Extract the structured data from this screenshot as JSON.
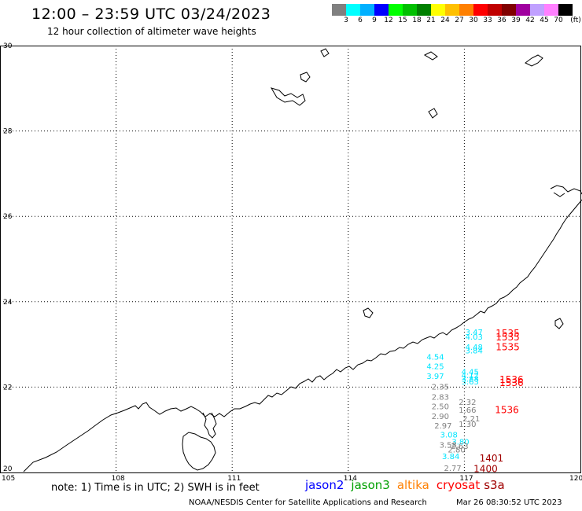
{
  "header": {
    "title": "12:00 – 23:59 UTC 03/24/2023",
    "subtitle": "12 hour collection of altimeter wave heights"
  },
  "legend": {
    "colors": [
      "#808080",
      "#00ffff",
      "#00b0ff",
      "#0000ff",
      "#00ff00",
      "#00c000",
      "#008000",
      "#ffff00",
      "#ffc000",
      "#ff8000",
      "#ff0000",
      "#c00000",
      "#800000",
      "#a000a0",
      "#c0a0ff",
      "#ff80ff",
      "#000000"
    ],
    "labels": [
      "3",
      "6",
      "9",
      "12",
      "15",
      "18",
      "21",
      "24",
      "27",
      "30",
      "33",
      "36",
      "39",
      "42",
      "45",
      "70",
      "(ft)"
    ]
  },
  "axes": {
    "lat_labels": [
      "30",
      "28",
      "26",
      "24",
      "22",
      "20"
    ],
    "lon_labels": [
      "105",
      "108",
      "111",
      "114",
      "117",
      "120"
    ],
    "lon_range": [
      105,
      120
    ],
    "lat_range": [
      20,
      30
    ]
  },
  "observations": [
    {
      "lon": 117.25,
      "lat": 23.22,
      "text": "3.47",
      "color": "#00e5ff"
    },
    {
      "lon": 117.25,
      "lat": 23.11,
      "text": "4.03",
      "color": "#00e5ff"
    },
    {
      "lon": 117.25,
      "lat": 22.87,
      "text": "4.48",
      "color": "#00e5ff"
    },
    {
      "lon": 117.25,
      "lat": 22.79,
      "text": "3.84",
      "color": "#00e5ff"
    },
    {
      "lon": 116.25,
      "lat": 22.64,
      "text": "4.54",
      "color": "#00e5ff"
    },
    {
      "lon": 116.25,
      "lat": 22.42,
      "text": "4.25",
      "color": "#00e5ff"
    },
    {
      "lon": 116.25,
      "lat": 22.19,
      "text": "3.97",
      "color": "#00e5ff"
    },
    {
      "lon": 117.15,
      "lat": 22.29,
      "text": "4.45",
      "color": "#00e5ff"
    },
    {
      "lon": 117.15,
      "lat": 22.21,
      "text": "4.12",
      "color": "#00e5ff"
    },
    {
      "lon": 117.15,
      "lat": 22.13,
      "text": "3.88",
      "color": "#00e5ff"
    },
    {
      "lon": 117.15,
      "lat": 22.06,
      "text": "3.63",
      "color": "#00e5ff"
    },
    {
      "lon": 116.38,
      "lat": 21.94,
      "text": "2.35",
      "color": "#808080"
    },
    {
      "lon": 116.38,
      "lat": 21.7,
      "text": "2.83",
      "color": "#808080"
    },
    {
      "lon": 116.38,
      "lat": 21.48,
      "text": "2.50",
      "color": "#808080"
    },
    {
      "lon": 116.38,
      "lat": 21.25,
      "text": "2.90",
      "color": "#808080"
    },
    {
      "lon": 116.45,
      "lat": 21.03,
      "text": "2.97",
      "color": "#808080"
    },
    {
      "lon": 117.08,
      "lat": 21.58,
      "text": "2.32",
      "color": "#808080"
    },
    {
      "lon": 117.08,
      "lat": 21.4,
      "text": "1.66",
      "color": "#808080"
    },
    {
      "lon": 117.18,
      "lat": 21.2,
      "text": "2.21",
      "color": "#808080"
    },
    {
      "lon": 117.08,
      "lat": 21.07,
      "text": "1.30",
      "color": "#808080"
    },
    {
      "lon": 116.6,
      "lat": 20.82,
      "text": "3.08",
      "color": "#00e5ff"
    },
    {
      "lon": 116.9,
      "lat": 20.65,
      "text": "3.80",
      "color": "#00e5ff"
    },
    {
      "lon": 116.58,
      "lat": 20.58,
      "text": "3.58",
      "color": "#808080"
    },
    {
      "lon": 116.88,
      "lat": 20.55,
      "text": "2.63",
      "color": "#808080"
    },
    {
      "lon": 116.8,
      "lat": 20.47,
      "text": "2.80",
      "color": "#808080"
    },
    {
      "lon": 116.65,
      "lat": 20.31,
      "text": "3.84",
      "color": "#00e5ff"
    },
    {
      "lon": 116.7,
      "lat": 20.04,
      "text": "2.77",
      "color": "#808080"
    },
    {
      "lon": 118.12,
      "lat": 23.19,
      "text": "1535",
      "color": "#ff0000",
      "big": true
    },
    {
      "lon": 118.12,
      "lat": 23.09,
      "text": "1535",
      "color": "#ff0000",
      "big": true
    },
    {
      "lon": 118.12,
      "lat": 22.86,
      "text": "1535",
      "color": "#ff0000",
      "big": true
    },
    {
      "lon": 118.22,
      "lat": 22.1,
      "text": "1536",
      "color": "#ff0000",
      "big": true
    },
    {
      "lon": 118.22,
      "lat": 22.03,
      "text": "1536",
      "color": "#ff0000",
      "big": true
    },
    {
      "lon": 118.1,
      "lat": 21.39,
      "text": "1536",
      "color": "#ff0000",
      "big": true
    },
    {
      "lon": 117.7,
      "lat": 20.26,
      "text": "1401",
      "color": "#a00000",
      "big": true
    },
    {
      "lon": 117.55,
      "lat": 20.01,
      "text": "1400",
      "color": "#a00000",
      "big": true
    }
  ],
  "footer": {
    "note": "note:  1)  Time is in UTC;  2)  SWH is in feet",
    "missions": [
      {
        "name": "jason2",
        "color": "#0000ff"
      },
      {
        "name": "jason3",
        "color": "#00a000"
      },
      {
        "name": "altika",
        "color": "#ff8000"
      },
      {
        "name": "cryosat",
        "color": "#ff0000"
      },
      {
        "name": "s3a",
        "color": "#a00000"
      }
    ],
    "credit": "NOAA/NESDIS Center for Satellite Applications and Research",
    "timestamp": "Mar 26 08:30:52 UTC 2023"
  }
}
